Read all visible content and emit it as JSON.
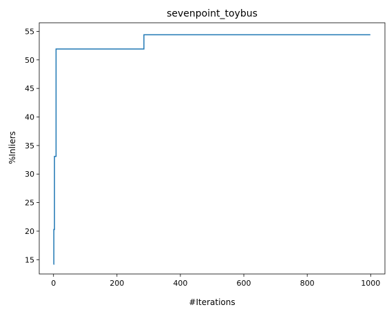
{
  "chart_data": {
    "type": "line",
    "title": "sevenpoint_toybus",
    "xlabel": "#Iterations",
    "ylabel": "%Inliers",
    "xlim": [
      -45,
      1045
    ],
    "ylim": [
      12.5,
      56.5
    ],
    "xticks": [
      0,
      200,
      400,
      600,
      800,
      1000
    ],
    "yticks": [
      15,
      20,
      25,
      30,
      35,
      40,
      45,
      50,
      55
    ],
    "grid": false,
    "series": [
      {
        "color": "#1f77b4",
        "step": "post",
        "x": [
          0,
          1,
          3,
          8,
          285,
          999
        ],
        "y": [
          14.2,
          20.3,
          33.1,
          51.9,
          54.4,
          54.4
        ]
      }
    ]
  }
}
